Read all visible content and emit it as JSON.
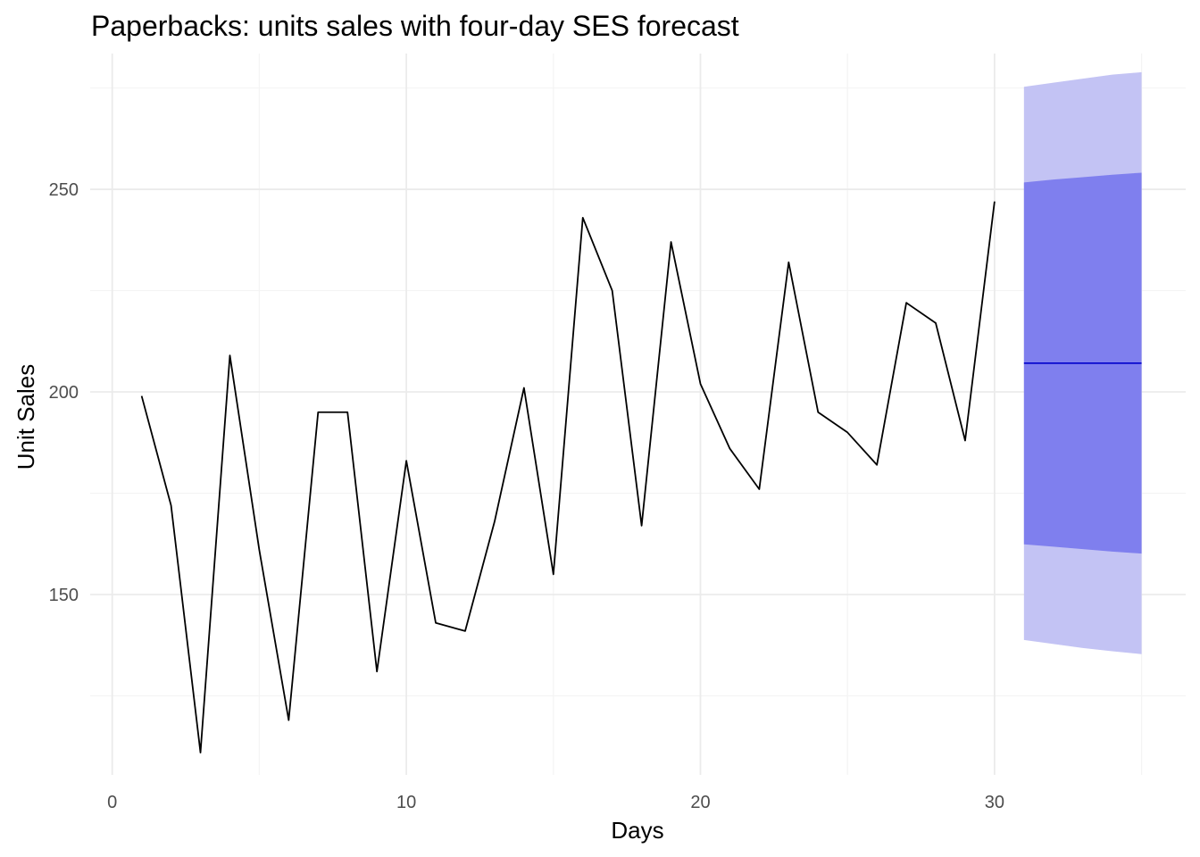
{
  "chart_data": {
    "type": "line",
    "title": "Paperbacks: units sales with four-day SES forecast",
    "xlabel": "Days",
    "ylabel": "Unit Sales",
    "xlim": [
      -0.75,
      36.5
    ],
    "ylim": [
      105.5,
      283.5
    ],
    "x_ticks": [
      0,
      10,
      20,
      30
    ],
    "x_minor_ticks": [
      5,
      15,
      25,
      35
    ],
    "y_ticks": [
      150,
      200,
      250
    ],
    "y_minor_ticks": [
      125,
      175,
      225,
      275
    ],
    "grid": true,
    "legend": "none",
    "series": [
      {
        "values": [
          {
            "x": 1,
            "y": 199
          },
          {
            "x": 2,
            "y": 172
          },
          {
            "x": 3,
            "y": 111
          },
          {
            "x": 4,
            "y": 209
          },
          {
            "x": 5,
            "y": 161
          },
          {
            "x": 6,
            "y": 119
          },
          {
            "x": 7,
            "y": 195
          },
          {
            "x": 8,
            "y": 195
          },
          {
            "x": 9,
            "y": 131
          },
          {
            "x": 10,
            "y": 183
          },
          {
            "x": 11,
            "y": 143
          },
          {
            "x": 12,
            "y": 141
          },
          {
            "x": 13,
            "y": 168
          },
          {
            "x": 14,
            "y": 201
          },
          {
            "x": 15,
            "y": 155
          },
          {
            "x": 16,
            "y": 243
          },
          {
            "x": 17,
            "y": 225
          },
          {
            "x": 18,
            "y": 167
          },
          {
            "x": 19,
            "y": 237
          },
          {
            "x": 20,
            "y": 202
          },
          {
            "x": 21,
            "y": 186
          },
          {
            "x": 22,
            "y": 176
          },
          {
            "x": 23,
            "y": 232
          },
          {
            "x": 24,
            "y": 195
          },
          {
            "x": 25,
            "y": 190
          },
          {
            "x": 26,
            "y": 182
          },
          {
            "x": 27,
            "y": 222
          },
          {
            "x": 28,
            "y": 217
          },
          {
            "x": 29,
            "y": 188
          },
          {
            "x": 30,
            "y": 247
          }
        ],
        "color": "#000000"
      },
      {
        "values": [
          {
            "x": 31,
            "y": 207.1
          },
          {
            "x": 32,
            "y": 207.1
          },
          {
            "x": 33,
            "y": 207.1
          },
          {
            "x": 34,
            "y": 207.1
          },
          {
            "x": 35,
            "y": 207.1
          }
        ],
        "color": "#0000cc"
      }
    ],
    "forecast_bands": {
      "x": [
        31,
        32,
        33,
        34,
        35
      ],
      "outer": {
        "lower": [
          138.8,
          137.8,
          136.8,
          136.0,
          135.3
        ],
        "upper": [
          275.3,
          276.3,
          277.3,
          278.3,
          278.9
        ],
        "color": "#c3c3f4"
      },
      "inner": {
        "lower": [
          162.4,
          161.8,
          161.2,
          160.6,
          160.1
        ],
        "upper": [
          251.7,
          252.4,
          253.0,
          253.6,
          254.1
        ],
        "color": "#7f7fee"
      }
    },
    "colors": {
      "grid_major": "#ebebeb",
      "grid_minor": "#f4f4f4",
      "tick_text": "#4d4d4d",
      "title_text": "#000000"
    }
  }
}
